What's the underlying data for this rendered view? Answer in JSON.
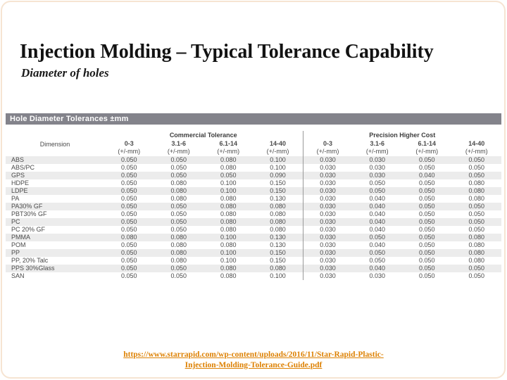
{
  "page": {
    "title": "Injection Molding – Typical Tolerance Capability",
    "subtitle": "Diameter of holes"
  },
  "table": {
    "bar_title": "Hole Diameter Tolerances ±mm",
    "dimension_header": "Dimension",
    "group_headers": [
      "Commercial Tolerance",
      "Precision Higher Cost"
    ],
    "col_ranges": [
      "0-3",
      "3.1-6",
      "6.1-14",
      "14-40",
      "0-3",
      "3.1-6",
      "6.1-14",
      "14-40"
    ],
    "col_unit": "(+/-mm)",
    "rows": [
      {
        "material": "ABS",
        "values": [
          "0.050",
          "0.050",
          "0.080",
          "0.100",
          "0.030",
          "0.030",
          "0.050",
          "0.050"
        ]
      },
      {
        "material": "ABS/PC",
        "values": [
          "0.050",
          "0.050",
          "0.080",
          "0.100",
          "0.030",
          "0.030",
          "0.050",
          "0.050"
        ]
      },
      {
        "material": "GPS",
        "values": [
          "0.050",
          "0.050",
          "0.050",
          "0.090",
          "0.030",
          "0.030",
          "0.040",
          "0.050"
        ]
      },
      {
        "material": "HDPE",
        "values": [
          "0.050",
          "0.080",
          "0.100",
          "0.150",
          "0.030",
          "0.050",
          "0.050",
          "0.080"
        ]
      },
      {
        "material": "LDPE",
        "values": [
          "0.050",
          "0.080",
          "0.100",
          "0.150",
          "0.030",
          "0.050",
          "0.050",
          "0.080"
        ]
      },
      {
        "material": "PA",
        "values": [
          "0.050",
          "0.080",
          "0.080",
          "0.130",
          "0.030",
          "0.040",
          "0.050",
          "0.080"
        ]
      },
      {
        "material": "PA30% GF",
        "values": [
          "0.050",
          "0.050",
          "0.080",
          "0.080",
          "0.030",
          "0.040",
          "0.050",
          "0.050"
        ]
      },
      {
        "material": "PBT30% GF",
        "values": [
          "0.050",
          "0.050",
          "0.080",
          "0.080",
          "0.030",
          "0.040",
          "0.050",
          "0.050"
        ]
      },
      {
        "material": "PC",
        "values": [
          "0.050",
          "0.050",
          "0.080",
          "0.080",
          "0.030",
          "0.040",
          "0.050",
          "0.050"
        ]
      },
      {
        "material": "PC 20% GF",
        "values": [
          "0.050",
          "0.050",
          "0.080",
          "0.080",
          "0.030",
          "0.040",
          "0.050",
          "0.050"
        ]
      },
      {
        "material": "PMMA",
        "values": [
          "0.080",
          "0.080",
          "0.100",
          "0.130",
          "0.030",
          "0.050",
          "0.050",
          "0.080"
        ]
      },
      {
        "material": "POM",
        "values": [
          "0.050",
          "0.080",
          "0.080",
          "0.130",
          "0.030",
          "0.040",
          "0.050",
          "0.080"
        ]
      },
      {
        "material": "PP",
        "values": [
          "0.050",
          "0.080",
          "0.100",
          "0.150",
          "0.030",
          "0.050",
          "0.050",
          "0.080"
        ]
      },
      {
        "material": "PP, 20% Talc",
        "values": [
          "0.050",
          "0.080",
          "0.100",
          "0.150",
          "0.030",
          "0.050",
          "0.050",
          "0.080"
        ]
      },
      {
        "material": "PPS 30%Glass",
        "values": [
          "0.050",
          "0.050",
          "0.080",
          "0.080",
          "0.030",
          "0.040",
          "0.050",
          "0.050"
        ]
      },
      {
        "material": "SAN",
        "values": [
          "0.050",
          "0.050",
          "0.080",
          "0.100",
          "0.030",
          "0.030",
          "0.050",
          "0.050"
        ]
      }
    ]
  },
  "footer": {
    "link_line1": "https://www.starrapid.com/wp-content/uploads/2016/11/Star-Rapid-Plastic-",
    "link_line2": "Injection-Molding-Tolerance-Guide.pdf"
  },
  "colors": {
    "bar_background": "#83838b",
    "row_stripe": "#ececec",
    "link_orange": "#dd8103",
    "divider_gray": "#999999"
  }
}
